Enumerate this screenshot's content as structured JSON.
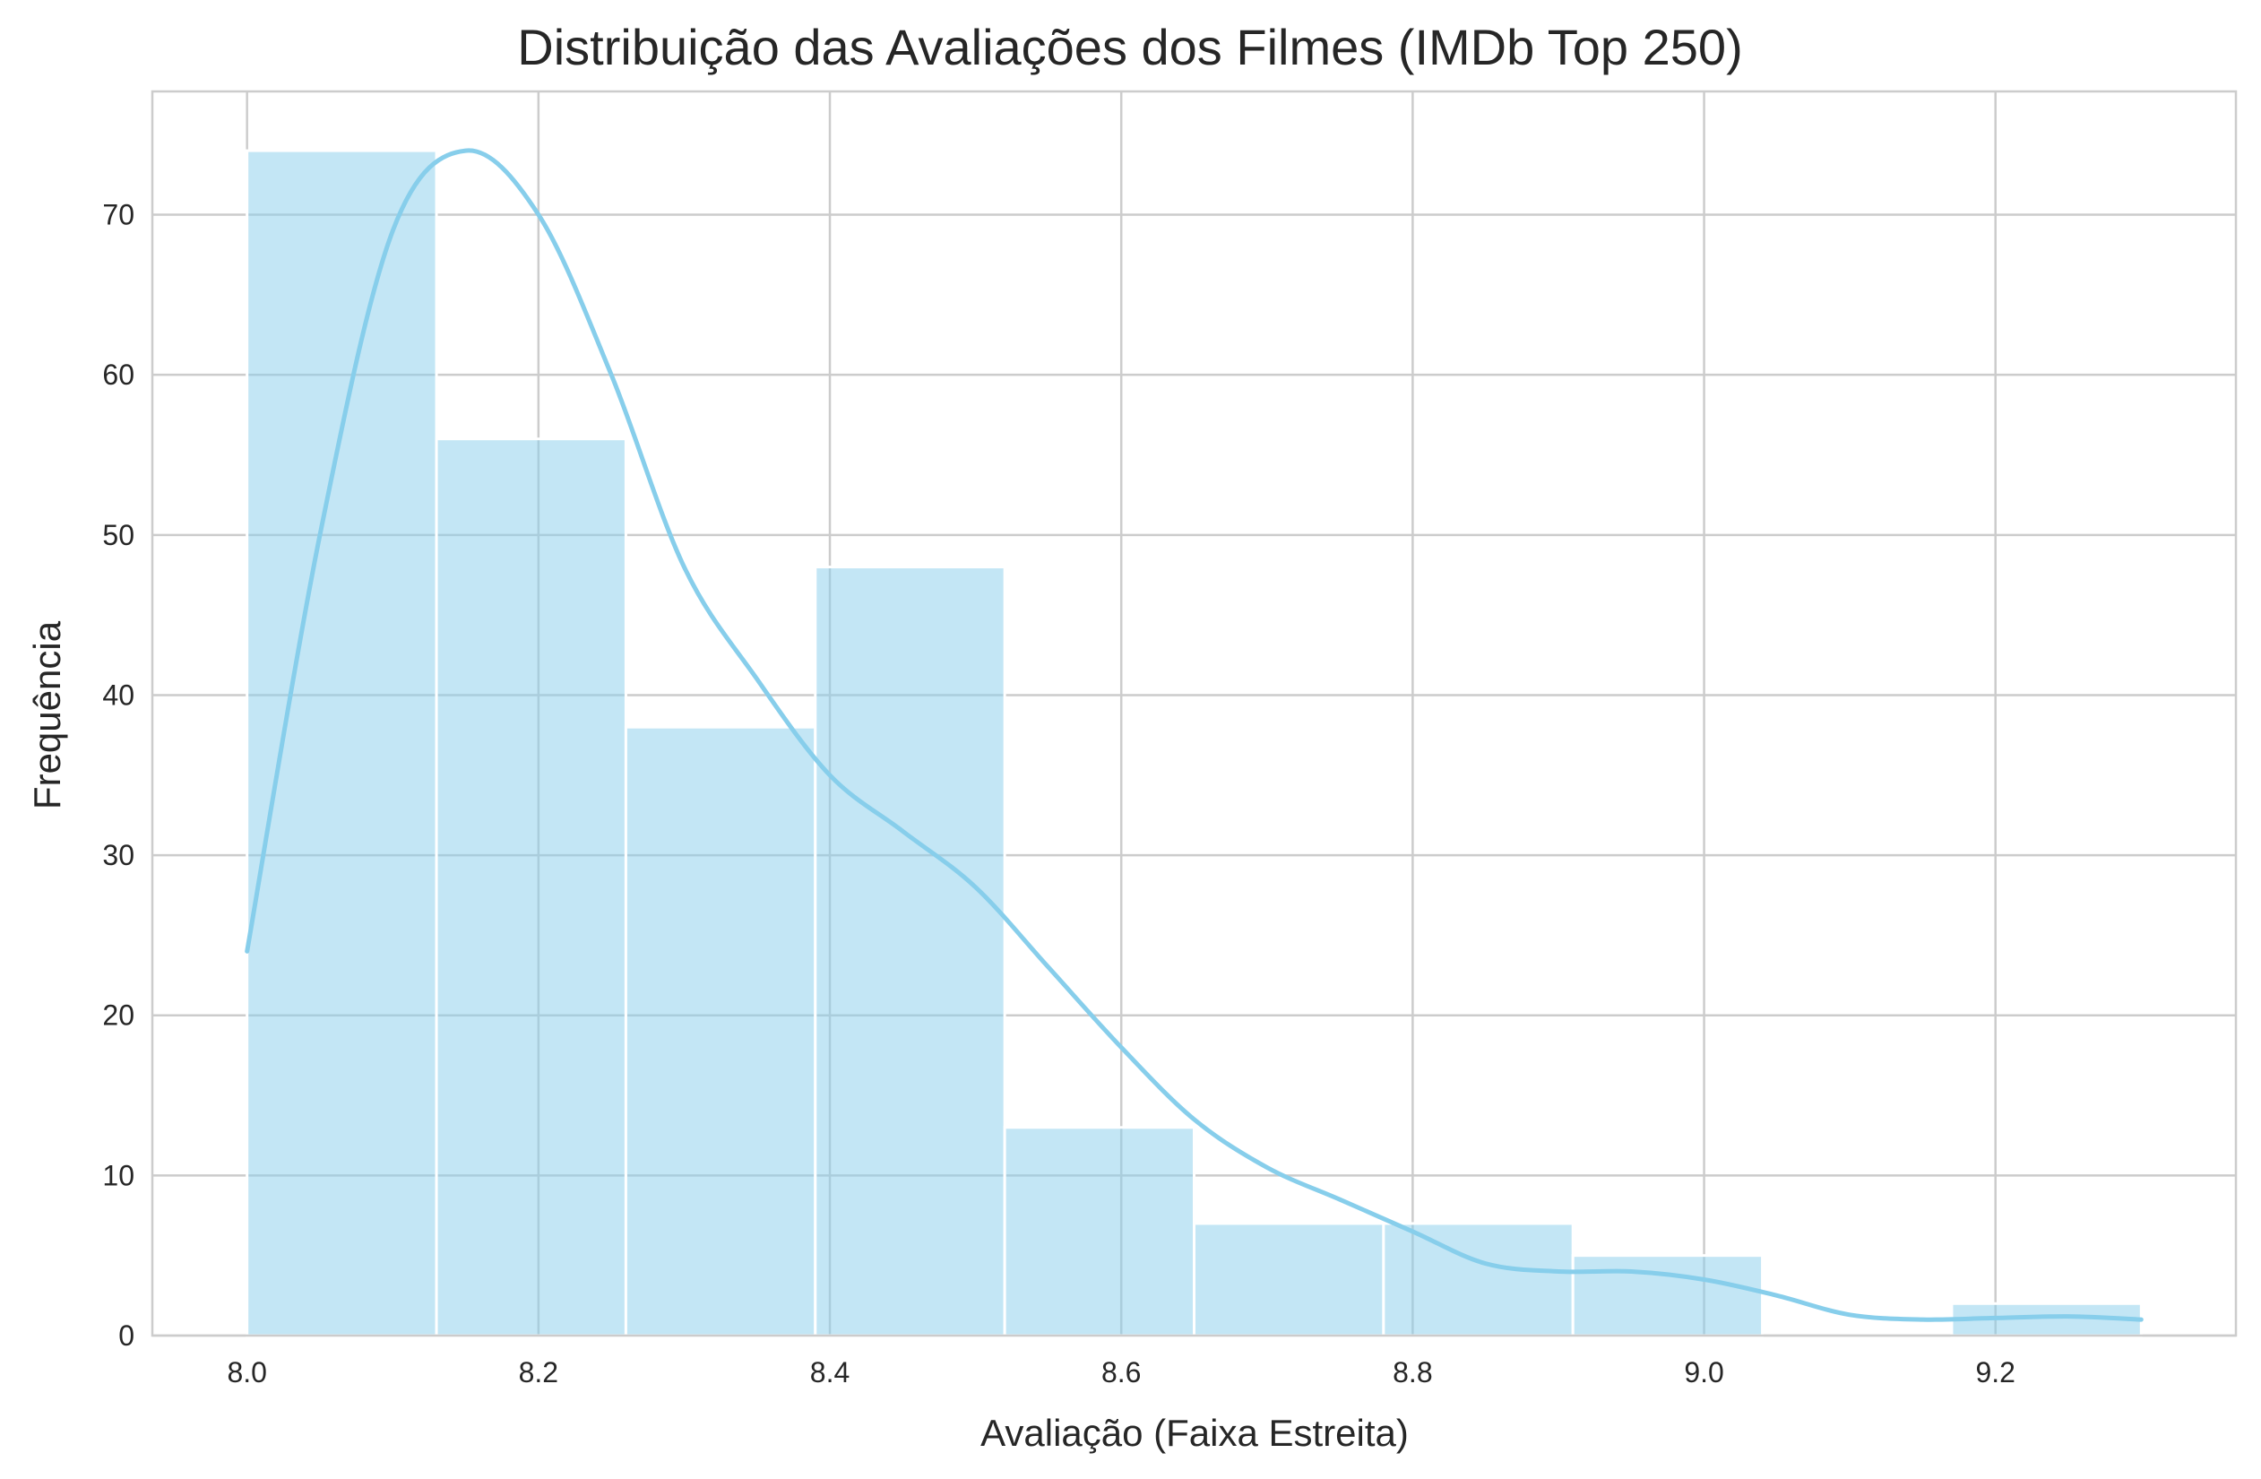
{
  "chart_data": {
    "type": "bar",
    "subtype": "histogram",
    "title": "Distribuição das Avaliações dos Filmes (IMDb Top 250)",
    "xlabel": "Avaliação (Faixa Estreita)",
    "ylabel": "Frequência",
    "xlim": [
      7.935,
      9.365
    ],
    "ylim": [
      0,
      77.7
    ],
    "xticks": [
      8.0,
      8.2,
      8.4,
      8.6,
      8.8,
      9.0,
      9.2
    ],
    "xtick_labels": [
      "8.0",
      "8.2",
      "8.4",
      "8.6",
      "8.8",
      "9.0",
      "9.2"
    ],
    "yticks": [
      0,
      10,
      20,
      30,
      40,
      50,
      60,
      70
    ],
    "ytick_labels": [
      "0",
      "10",
      "20",
      "30",
      "40",
      "50",
      "60",
      "70"
    ],
    "grid": true,
    "bin_edges": [
      8.0,
      8.13,
      8.26,
      8.39,
      8.52,
      8.65,
      8.78,
      8.91,
      9.04,
      9.17,
      9.3
    ],
    "counts": [
      74,
      56,
      38,
      48,
      13,
      7,
      7,
      5,
      0,
      2
    ],
    "kde": {
      "x": [
        8.0,
        8.05,
        8.1,
        8.15,
        8.2,
        8.25,
        8.3,
        8.35,
        8.4,
        8.45,
        8.5,
        8.55,
        8.6,
        8.65,
        8.7,
        8.75,
        8.8,
        8.85,
        8.9,
        8.95,
        9.0,
        9.05,
        9.1,
        9.15,
        9.2,
        9.25,
        9.3
      ],
      "y": [
        24,
        50,
        69,
        74,
        70,
        60,
        48,
        41,
        35,
        31.5,
        28,
        23,
        18,
        13.5,
        10.5,
        8.5,
        6.5,
        4.5,
        4,
        4,
        3.5,
        2.5,
        1.3,
        1,
        1.1,
        1.2,
        1
      ]
    },
    "colors": {
      "bar_fill": "#87ceeb",
      "bar_opacity": 0.5,
      "bar_edge": "#ffffff",
      "line": "#87ceeb",
      "grid": "#cccccc",
      "spine": "#cccccc",
      "background": "#ffffff"
    }
  }
}
